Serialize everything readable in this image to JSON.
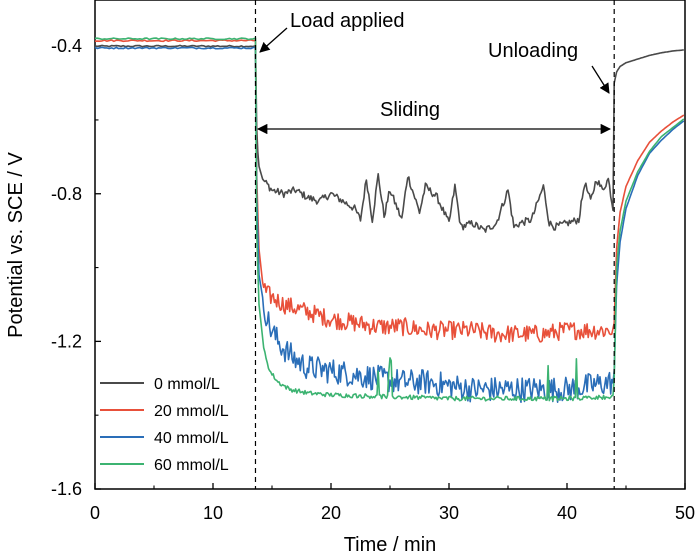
{
  "chart_data": {
    "type": "line",
    "title": "",
    "xlabel": "Time / min",
    "ylabel": "Potential vs. SCE / V",
    "xlim": [
      0,
      50
    ],
    "ylim": [
      -1.6,
      -0.275
    ],
    "xticks": [
      0,
      10,
      20,
      30,
      40,
      50
    ],
    "xtick_labels": [
      "0",
      "10",
      "20",
      "30",
      "40",
      "50"
    ],
    "yticks": [
      -0.4,
      -0.8,
      -1.2,
      -1.6
    ],
    "ytick_labels": [
      "-0.4",
      "-0.8",
      "-1.2",
      "-1.6"
    ],
    "grid": false,
    "legend_position": "bottom-left",
    "markers": {
      "load_time": 13.6,
      "unload_time": 44.0
    },
    "annotations": {
      "load": "Load applied",
      "sliding": "Sliding",
      "unloading": "Unloading"
    },
    "series": [
      {
        "name": "0 mmol/L",
        "color": "#4a4a4a",
        "pre_value": -0.4,
        "sliding_points": [
          [
            13.6,
            -0.4
          ],
          [
            13.7,
            -0.62
          ],
          [
            13.85,
            -0.72
          ],
          [
            14.2,
            -0.76
          ],
          [
            15,
            -0.79
          ],
          [
            16,
            -0.8
          ],
          [
            17,
            -0.79
          ],
          [
            18,
            -0.81
          ],
          [
            19,
            -0.82
          ],
          [
            20,
            -0.8
          ],
          [
            21,
            -0.82
          ],
          [
            22,
            -0.84
          ],
          [
            22.5,
            -0.87
          ],
          [
            23,
            -0.76
          ],
          [
            23.5,
            -0.87
          ],
          [
            24,
            -0.75
          ],
          [
            24.5,
            -0.86
          ],
          [
            25,
            -0.79
          ],
          [
            26,
            -0.87
          ],
          [
            26.5,
            -0.75
          ],
          [
            27.5,
            -0.85
          ],
          [
            28,
            -0.78
          ],
          [
            29,
            -0.81
          ],
          [
            30,
            -0.88
          ],
          [
            30.5,
            -0.78
          ],
          [
            31,
            -0.89
          ],
          [
            32,
            -0.88
          ],
          [
            33,
            -0.9
          ],
          [
            34,
            -0.88
          ],
          [
            35,
            -0.79
          ],
          [
            35.5,
            -0.89
          ],
          [
            36,
            -0.88
          ],
          [
            37,
            -0.87
          ],
          [
            38,
            -0.78
          ],
          [
            38.5,
            -0.88
          ],
          [
            39,
            -0.89
          ],
          [
            40,
            -0.88
          ],
          [
            41,
            -0.87
          ],
          [
            41.5,
            -0.77
          ],
          [
            42,
            -0.82
          ],
          [
            42.5,
            -0.76
          ],
          [
            43,
            -0.79
          ],
          [
            43.5,
            -0.76
          ],
          [
            43.9,
            -0.84
          ]
        ],
        "unload_points": [
          [
            44.0,
            -0.5
          ],
          [
            44.2,
            -0.47
          ],
          [
            44.5,
            -0.455
          ],
          [
            45,
            -0.445
          ],
          [
            46,
            -0.435
          ],
          [
            47,
            -0.425
          ],
          [
            48,
            -0.418
          ],
          [
            49,
            -0.413
          ],
          [
            50,
            -0.41
          ]
        ]
      },
      {
        "name": "20 mmol/L",
        "color": "#e8503a",
        "pre_value": -0.385,
        "sliding_points": [
          [
            13.6,
            -0.385
          ],
          [
            13.7,
            -0.75
          ],
          [
            13.9,
            -0.95
          ],
          [
            14.2,
            -1.04
          ],
          [
            14.5,
            -1.07
          ],
          [
            15,
            -1.08
          ],
          [
            16,
            -1.1
          ],
          [
            17,
            -1.11
          ],
          [
            18,
            -1.12
          ],
          [
            20,
            -1.14
          ],
          [
            22,
            -1.15
          ],
          [
            24,
            -1.16
          ],
          [
            26,
            -1.16
          ],
          [
            28,
            -1.17
          ],
          [
            30,
            -1.17
          ],
          [
            32,
            -1.17
          ],
          [
            34,
            -1.18
          ],
          [
            36,
            -1.18
          ],
          [
            38,
            -1.18
          ],
          [
            40,
            -1.17
          ],
          [
            42,
            -1.17
          ],
          [
            43.9,
            -1.17
          ]
        ],
        "unload_points": [
          [
            44.0,
            -1.15
          ],
          [
            44.2,
            -0.95
          ],
          [
            44.5,
            -0.85
          ],
          [
            45,
            -0.78
          ],
          [
            46,
            -0.71
          ],
          [
            47,
            -0.66
          ],
          [
            48,
            -0.63
          ],
          [
            49,
            -0.605
          ],
          [
            50,
            -0.585
          ]
        ]
      },
      {
        "name": "40 mmol/L",
        "color": "#2a6eb8",
        "pre_value": -0.405,
        "sliding_points": [
          [
            13.6,
            -0.405
          ],
          [
            13.7,
            -0.8
          ],
          [
            13.9,
            -1.02
          ],
          [
            14.3,
            -1.1
          ],
          [
            14.8,
            -1.16
          ],
          [
            15.5,
            -1.2
          ],
          [
            16,
            -1.22
          ],
          [
            17,
            -1.25
          ],
          [
            18,
            -1.27
          ],
          [
            20,
            -1.28
          ],
          [
            22,
            -1.29
          ],
          [
            24,
            -1.3
          ],
          [
            26,
            -1.31
          ],
          [
            28,
            -1.31
          ],
          [
            30,
            -1.32
          ],
          [
            32,
            -1.33
          ],
          [
            34,
            -1.33
          ],
          [
            36,
            -1.33
          ],
          [
            38,
            -1.33
          ],
          [
            40,
            -1.33
          ],
          [
            42,
            -1.32
          ],
          [
            43.9,
            -1.31
          ]
        ],
        "unload_points": [
          [
            44.0,
            -1.28
          ],
          [
            44.2,
            -1.05
          ],
          [
            44.5,
            -0.93
          ],
          [
            45,
            -0.84
          ],
          [
            46,
            -0.75
          ],
          [
            47,
            -0.69
          ],
          [
            48,
            -0.655
          ],
          [
            49,
            -0.625
          ],
          [
            50,
            -0.6
          ]
        ]
      },
      {
        "name": "60 mmol/L",
        "color": "#3cb371",
        "pre_value": -0.38,
        "sliding_points": [
          [
            13.6,
            -0.38
          ],
          [
            13.7,
            -0.9
          ],
          [
            13.9,
            -1.1
          ],
          [
            14.3,
            -1.22
          ],
          [
            14.8,
            -1.28
          ],
          [
            15.5,
            -1.31
          ],
          [
            16.5,
            -1.33
          ],
          [
            18,
            -1.34
          ],
          [
            20,
            -1.345
          ],
          [
            25,
            -1.35
          ],
          [
            30,
            -1.355
          ],
          [
            35,
            -1.355
          ],
          [
            40,
            -1.355
          ],
          [
            43.9,
            -1.35
          ]
        ],
        "unload_points": [
          [
            44.0,
            -1.3
          ],
          [
            44.2,
            -1.0
          ],
          [
            44.5,
            -0.9
          ],
          [
            45,
            -0.82
          ],
          [
            46,
            -0.74
          ],
          [
            47,
            -0.685
          ],
          [
            48,
            -0.645
          ],
          [
            49,
            -0.62
          ],
          [
            50,
            -0.595
          ]
        ]
      }
    ]
  }
}
